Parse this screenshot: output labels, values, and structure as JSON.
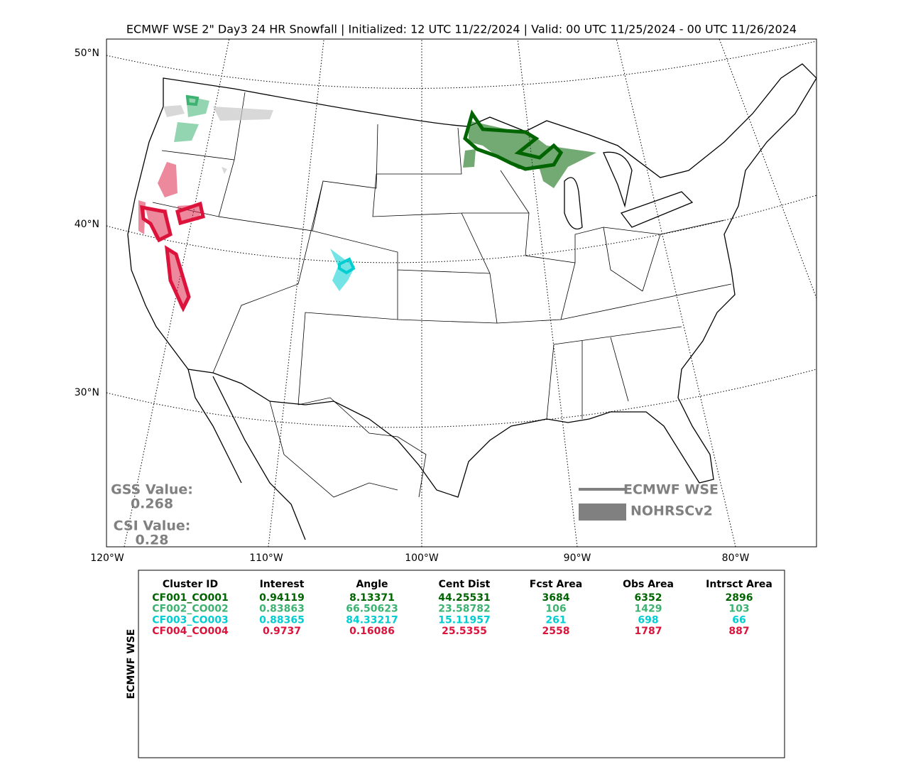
{
  "title": "ECMWF WSE 2\" Day3 24 HR Snowfall | Initialized: 12 UTC 11/22/2024 | Valid: 00 UTC 11/25/2024 - 00 UTC 11/26/2024",
  "map": {
    "lat_labels": [
      "50°N",
      "40°N",
      "30°N"
    ],
    "lon_labels": [
      "120°W",
      "110°W",
      "100°W",
      "90°W",
      "80°W"
    ]
  },
  "scores": {
    "gss_label": "GSS Value:",
    "gss": 0.268,
    "csi_label": "CSI Value:",
    "csi": 0.28,
    "color": "#808080"
  },
  "legend": {
    "items": [
      "ECMWF WSE",
      "NOHRSCv2"
    ],
    "color": "#808080"
  },
  "table": {
    "side_label": "ECMWF WSE",
    "columns": [
      "Cluster ID",
      "Interest",
      "Angle",
      "Cent Dist",
      "Fcst Area",
      "Obs Area",
      "Intrsct Area"
    ],
    "row_colors": [
      "#006400",
      "#3cb371",
      "#00ced1",
      "#dc143c"
    ],
    "rows": [
      [
        "CF001_CO001",
        0.94119,
        8.13371,
        44.25531,
        3684,
        6352,
        2896
      ],
      [
        "CF002_CO002",
        0.83863,
        66.50623,
        23.58782,
        106,
        1429,
        103
      ],
      [
        "CF003_CO003",
        0.88365,
        84.33217,
        15.11957,
        261,
        698,
        66
      ],
      [
        "CF004_CO004",
        0.9737,
        0.16086,
        25.5355,
        2558,
        1787,
        887
      ]
    ]
  }
}
